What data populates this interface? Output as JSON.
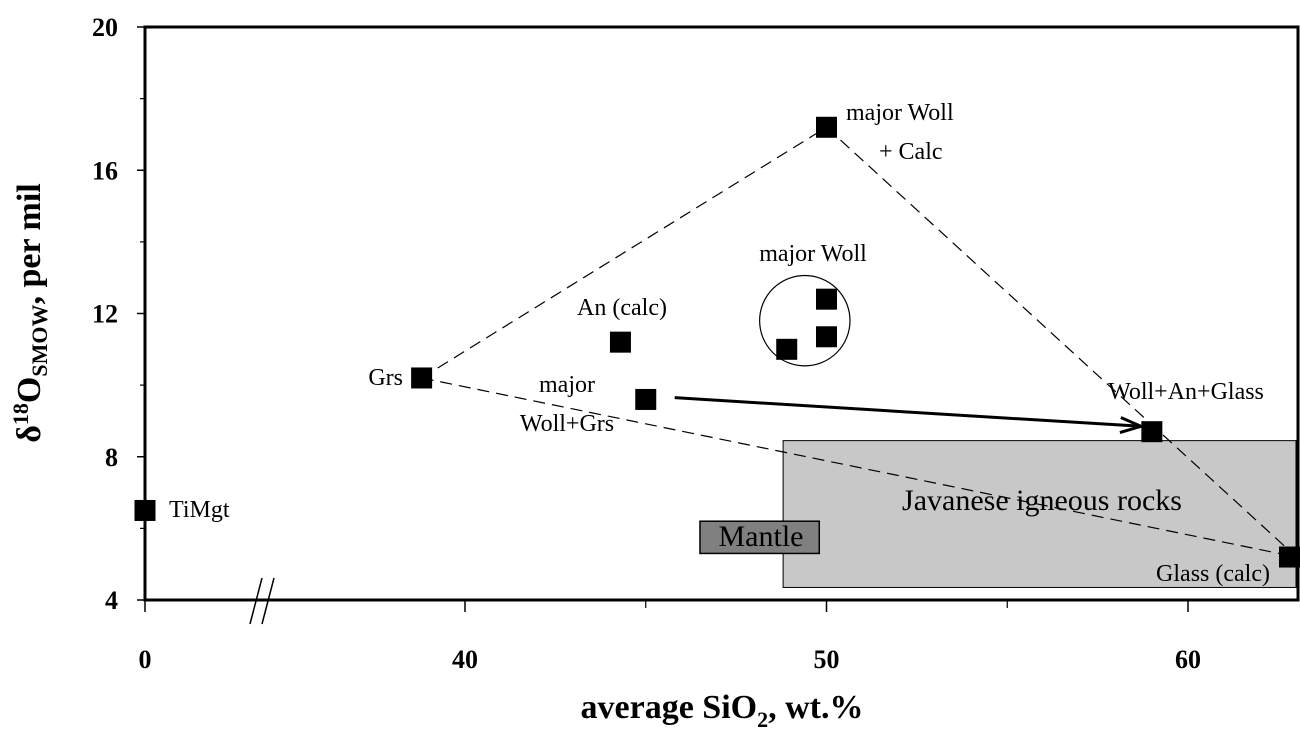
{
  "chart_data": {
    "type": "scatter",
    "xlabel": "average SiO",
    "xlabel_sub": "2",
    "xlabel_tail": ", wt.%",
    "ylabel_parts": [
      "δ",
      "18",
      "O",
      "SMOW",
      ", per mil"
    ],
    "xlim": [
      35,
      62
    ],
    "ylim": [
      4,
      20
    ],
    "x_axis_break": true,
    "x_break_note": "value 0 plotted left of axis break",
    "x_ticks": [
      {
        "value": 0,
        "label": "0"
      },
      {
        "value": 40,
        "label": "40"
      },
      {
        "value": 50,
        "label": "50"
      },
      {
        "value": 60,
        "label": "60"
      }
    ],
    "y_ticks": [
      {
        "value": 4,
        "label": "4"
      },
      {
        "value": 8,
        "label": "8"
      },
      {
        "value": 12,
        "label": "12"
      },
      {
        "value": 16,
        "label": "16"
      },
      {
        "value": 20,
        "label": "20"
      }
    ],
    "grid": false,
    "points": [
      {
        "label": "TiMgt",
        "x": 0,
        "y": 6.5
      },
      {
        "label": "Grs",
        "x": 38.8,
        "y": 10.2
      },
      {
        "label": "An (calc)",
        "x": 44.3,
        "y": 11.2
      },
      {
        "label": "major Woll+Grs",
        "x": 45.0,
        "y": 9.6
      },
      {
        "label": "major Woll",
        "x": 48.9,
        "y": 11.0
      },
      {
        "label": "major Woll",
        "x": 50.0,
        "y": 11.35
      },
      {
        "label": "major Woll",
        "x": 50.0,
        "y": 12.4
      },
      {
        "label": "major Woll + Calc",
        "x": 50.0,
        "y": 17.2
      },
      {
        "label": "Woll+An+Glass",
        "x": 59.0,
        "y": 8.7
      },
      {
        "label": "Glass (calc)",
        "x": 63.0,
        "y": 5.2
      }
    ],
    "annotations": [
      {
        "text": "TiMgt"
      },
      {
        "text": "Grs"
      },
      {
        "text": "An (calc)"
      },
      {
        "text": "major"
      },
      {
        "text": "Woll+Grs"
      },
      {
        "text": "major Woll"
      },
      {
        "text": "major Woll"
      },
      {
        "text": "+ Calc"
      },
      {
        "text": "Woll+An+Glass"
      },
      {
        "text": "Glass (calc)"
      }
    ],
    "regions": [
      {
        "label": "Javanese igneous rocks",
        "x": [
          48.8,
          63.0
        ],
        "y": [
          4.35,
          8.45
        ],
        "color": "#c8c8c8"
      },
      {
        "label": "Mantle",
        "x": [
          46.5,
          49.8
        ],
        "y": [
          5.3,
          6.2
        ],
        "color": "#808080"
      }
    ],
    "dashed_lines": [
      {
        "from": [
          38.8,
          10.2
        ],
        "to": [
          50.0,
          17.2
        ]
      },
      {
        "from": [
          50.0,
          17.2
        ],
        "to": [
          63.0,
          5.2
        ]
      },
      {
        "from": [
          38.8,
          10.2
        ],
        "to": [
          63.0,
          5.2
        ]
      }
    ],
    "arrow": {
      "from": [
        45.8,
        9.65
      ],
      "to": [
        58.7,
        8.85
      ]
    },
    "circle": {
      "center": [
        49.4,
        11.8
      ],
      "radius_x": 1.25
    }
  }
}
